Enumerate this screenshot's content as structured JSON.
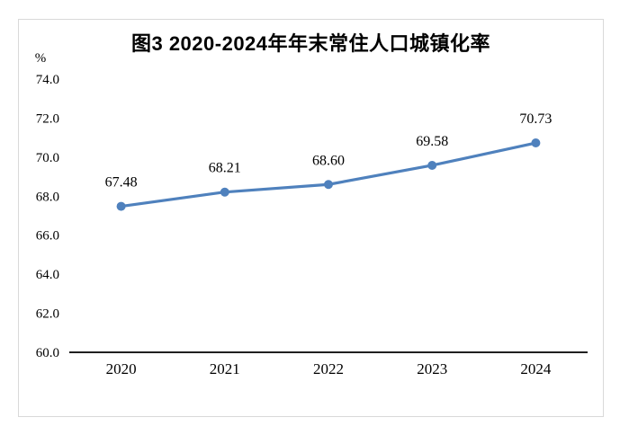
{
  "figure": {
    "title": "图3 2020-2024年年末常住人口城镇化率",
    "unit_label": "%"
  },
  "chart_data": {
    "type": "line",
    "title": "图3 2020-2024年年末常住人口城镇化率",
    "ylabel": "%",
    "xlabel": "",
    "categories": [
      "2020",
      "2021",
      "2022",
      "2023",
      "2024"
    ],
    "values": [
      67.48,
      68.21,
      68.6,
      69.58,
      70.73
    ],
    "data_labels": [
      "67.48",
      "68.21",
      "68.60",
      "69.58",
      "70.73"
    ],
    "ylim": [
      60,
      74
    ],
    "ytick_step": 2,
    "ytick_labels": [
      "60.0",
      "62.0",
      "64.0",
      "66.0",
      "68.0",
      "70.0",
      "72.0",
      "74.0"
    ],
    "grid": false,
    "legend": false,
    "line_color": "#4f81bd",
    "marker": "circle",
    "axis_color": "#000000",
    "frame_color": "#d9d9d9"
  }
}
